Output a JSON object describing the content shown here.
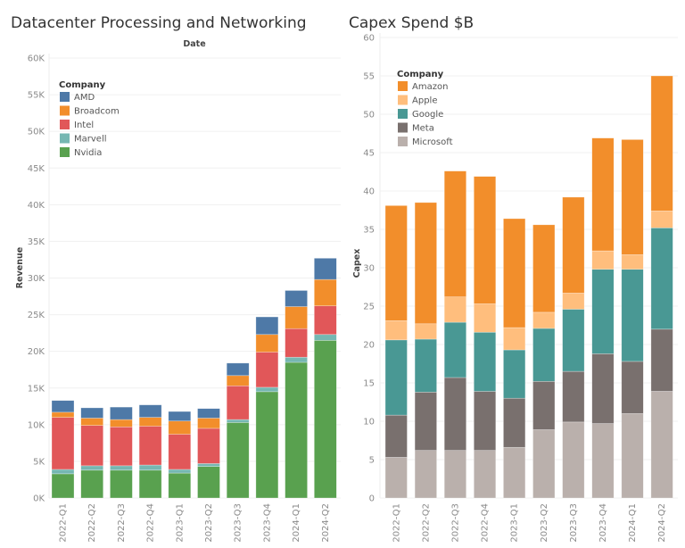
{
  "chart_data": [
    {
      "type": "bar",
      "stacked": true,
      "title": "Datacenter Processing and Networking",
      "xlabel": "Date",
      "ylabel": "Revenue",
      "ylim": [
        0,
        60000
      ],
      "yticks": [
        "0K",
        "5K",
        "10K",
        "15K",
        "20K",
        "25K",
        "30K",
        "35K",
        "40K",
        "45K",
        "50K",
        "55K",
        "60K"
      ],
      "grid": true,
      "legend_title": "Company",
      "legend": "top-left",
      "categories": [
        "2022-Q1",
        "2022-Q2",
        "2022-Q3",
        "2022-Q4",
        "2023-Q1",
        "2023-Q2",
        "2023-Q3",
        "2023-Q4",
        "2024-Q1",
        "2024-Q2"
      ],
      "series": [
        {
          "name": "Nvidia",
          "color": "#59a14f",
          "values": [
            3300,
            3800,
            3800,
            3800,
            3400,
            4300,
            10300,
            14500,
            18500,
            21500
          ]
        },
        {
          "name": "Marvell",
          "color": "#76b7b2",
          "values": [
            600,
            600,
            600,
            700,
            500,
            400,
            400,
            600,
            700,
            800
          ]
        },
        {
          "name": "Intel",
          "color": "#e15759",
          "values": [
            7100,
            5500,
            5300,
            5300,
            4800,
            4800,
            4600,
            4800,
            3900,
            3900
          ]
        },
        {
          "name": "Broadcom",
          "color": "#f28e2b",
          "values": [
            700,
            1000,
            1000,
            1200,
            1800,
            1400,
            1400,
            2400,
            3000,
            3600
          ]
        },
        {
          "name": "AMD",
          "color": "#4e79a7",
          "values": [
            1600,
            1400,
            1700,
            1700,
            1300,
            1300,
            1700,
            2400,
            2200,
            2900
          ]
        }
      ],
      "legend_order": [
        "AMD",
        "Broadcom",
        "Intel",
        "Marvell",
        "Nvidia"
      ]
    },
    {
      "type": "bar",
      "stacked": true,
      "title": "Capex Spend $B",
      "xlabel": "",
      "ylabel": "Capex",
      "ylim": [
        0,
        60
      ],
      "yticks": [
        "0",
        "5",
        "10",
        "15",
        "20",
        "25",
        "30",
        "35",
        "40",
        "45",
        "50",
        "55",
        "60"
      ],
      "grid": true,
      "legend_title": "Company",
      "legend": "top-left",
      "categories": [
        "2022-Q1",
        "2022-Q2",
        "2022-Q3",
        "2022-Q4",
        "2023-Q1",
        "2023-Q2",
        "2023-Q3",
        "2023-Q4",
        "2024-Q1",
        "2024-Q2"
      ],
      "series": [
        {
          "name": "Microsoft",
          "color": "#bab0ac",
          "values": [
            5.3,
            6.2,
            6.2,
            6.2,
            6.6,
            8.9,
            9.9,
            9.7,
            11.0,
            13.9
          ]
        },
        {
          "name": "Meta",
          "color": "#79706e",
          "values": [
            5.5,
            7.6,
            9.5,
            7.7,
            6.4,
            6.3,
            6.6,
            9.1,
            6.8,
            8.1
          ]
        },
        {
          "name": "Google",
          "color": "#499894",
          "values": [
            9.8,
            6.9,
            7.2,
            7.7,
            6.3,
            6.9,
            8.1,
            11.0,
            12.0,
            13.2
          ]
        },
        {
          "name": "Apple",
          "color": "#ffbe7d",
          "values": [
            2.5,
            2.0,
            3.3,
            3.7,
            2.9,
            2.1,
            2.1,
            2.4,
            1.9,
            2.2
          ]
        },
        {
          "name": "Amazon",
          "color": "#f28e2b",
          "values": [
            15.0,
            15.8,
            16.4,
            16.6,
            14.2,
            11.4,
            12.5,
            14.7,
            15.0,
            17.6
          ]
        }
      ],
      "legend_order": [
        "Amazon",
        "Apple",
        "Google",
        "Meta",
        "Microsoft"
      ]
    }
  ]
}
